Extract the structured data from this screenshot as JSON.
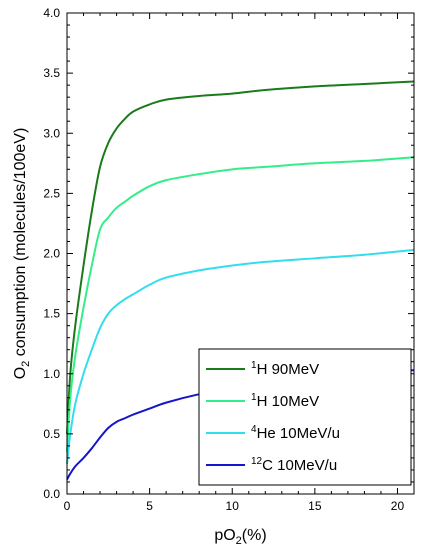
{
  "chart_data": {
    "type": "line",
    "xlabel": {
      "main": "pO",
      "sub": "2",
      "rest": "(%)"
    },
    "ylabel": {
      "main": "O",
      "sub": "2",
      "rest": " consumption (molecules/100eV)"
    },
    "xlim": [
      0,
      21
    ],
    "ylim": [
      0,
      4.0
    ],
    "xticks": [
      0,
      5,
      10,
      15,
      20
    ],
    "xtick_labels": [
      "0",
      "5",
      "10",
      "15",
      "20"
    ],
    "yticks": [
      0,
      0.5,
      1.0,
      1.5,
      2.0,
      2.5,
      3.0,
      3.5,
      4.0
    ],
    "ytick_labels": [
      "0.0",
      "0.5",
      "1.0",
      "1.5",
      "2.0",
      "2.5",
      "3.0",
      "3.5",
      "4.0"
    ],
    "grid": false,
    "legend_position": "bottom-right",
    "series": [
      {
        "legend": {
          "sup": "1",
          "text": "H  90MeV"
        },
        "color": "#1b7a1b",
        "x": [
          0,
          0.2,
          0.5,
          1,
          1.5,
          2,
          2.5,
          3,
          3.5,
          4,
          5,
          6,
          8,
          10,
          12,
          15,
          18,
          21
        ],
        "y": [
          0.5,
          1.0,
          1.4,
          1.9,
          2.35,
          2.72,
          2.92,
          3.04,
          3.12,
          3.18,
          3.24,
          3.28,
          3.31,
          3.33,
          3.36,
          3.39,
          3.41,
          3.43
        ]
      },
      {
        "legend": {
          "sup": "1",
          "text": "H  10MeV"
        },
        "color": "#33ee88",
        "x": [
          0,
          0.2,
          0.5,
          1,
          1.5,
          2,
          2.5,
          3,
          3.5,
          4,
          5,
          6,
          8,
          10,
          12,
          15,
          18,
          21
        ],
        "y": [
          0.35,
          0.8,
          1.15,
          1.55,
          1.9,
          2.2,
          2.3,
          2.38,
          2.43,
          2.48,
          2.56,
          2.61,
          2.66,
          2.7,
          2.72,
          2.75,
          2.77,
          2.8
        ]
      },
      {
        "legend": {
          "sup": "4",
          "text": "He  10MeV/u"
        },
        "color": "#33ddee",
        "x": [
          0,
          0.2,
          0.5,
          1,
          1.5,
          2,
          2.5,
          3,
          3.5,
          4,
          5,
          6,
          8,
          10,
          12,
          15,
          18,
          21
        ],
        "y": [
          0.25,
          0.5,
          0.75,
          1.0,
          1.2,
          1.38,
          1.5,
          1.57,
          1.62,
          1.66,
          1.74,
          1.8,
          1.86,
          1.9,
          1.93,
          1.96,
          1.99,
          2.03
        ]
      },
      {
        "legend": {
          "sup": "12",
          "text": "C  10MeV/u"
        },
        "color": "#1515cc",
        "x": [
          0,
          0.2,
          0.5,
          1,
          1.5,
          2,
          2.5,
          3,
          3.5,
          4,
          5,
          6,
          8,
          10,
          12,
          15,
          18,
          21
        ],
        "y": [
          0.12,
          0.17,
          0.23,
          0.3,
          0.38,
          0.47,
          0.55,
          0.6,
          0.63,
          0.66,
          0.71,
          0.76,
          0.83,
          0.88,
          0.92,
          0.96,
          1.0,
          1.03
        ]
      }
    ]
  }
}
